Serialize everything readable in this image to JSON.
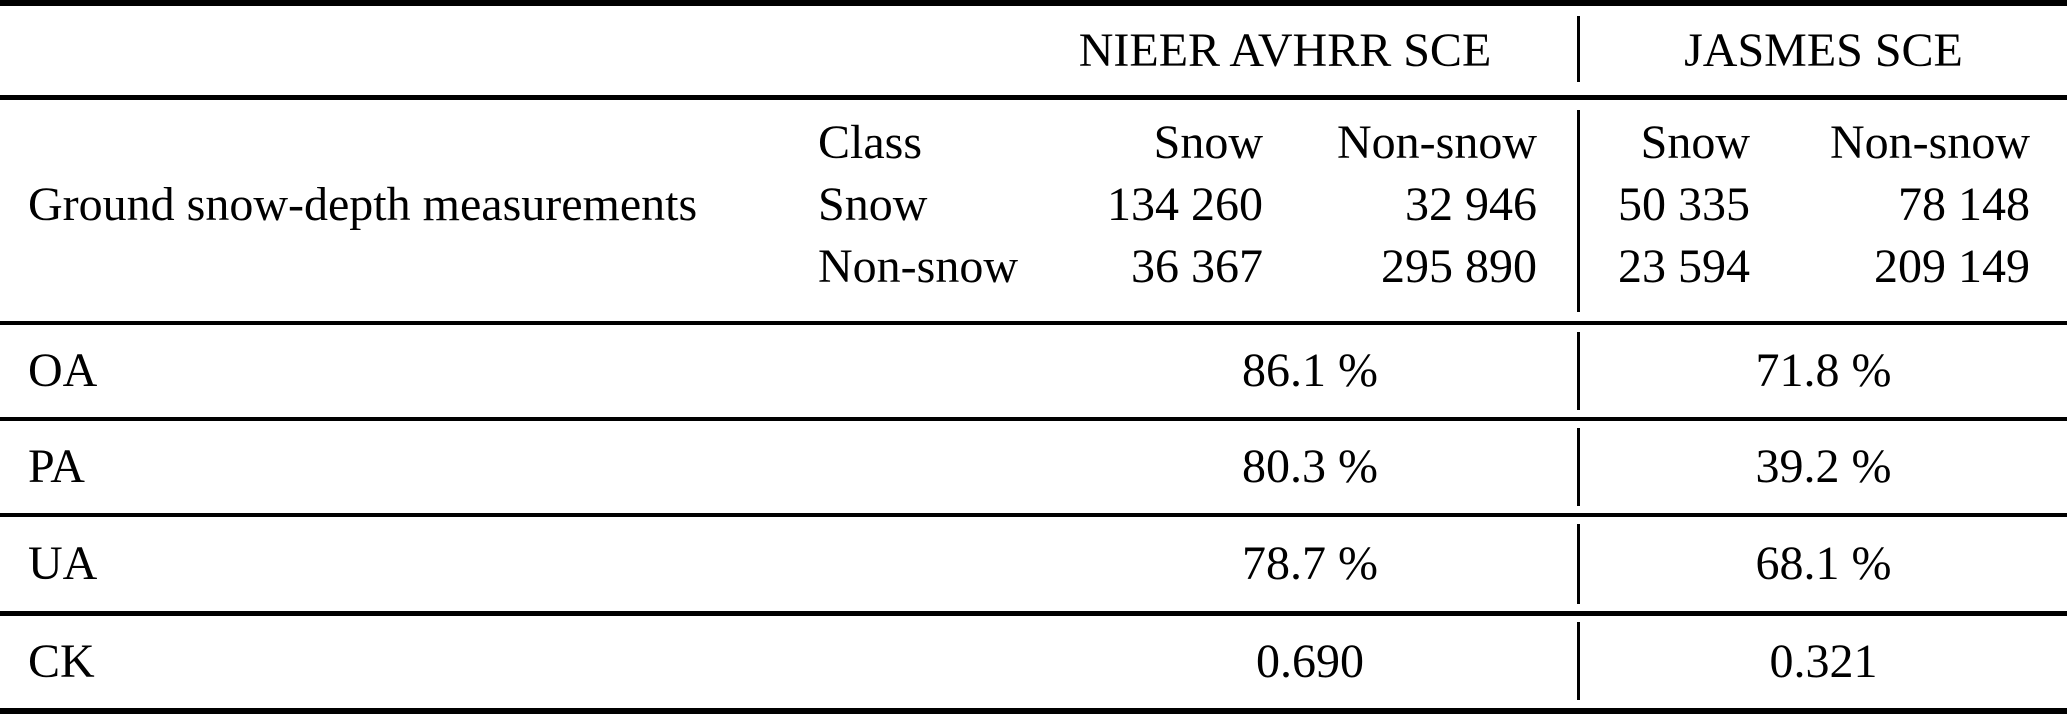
{
  "table": {
    "group_headers": {
      "nieer": "NIEER AVHRR SCE",
      "jasmes": "JASMES SCE"
    },
    "matrix": {
      "row_header": "Ground snow-depth measurements",
      "class_col": [
        "Class",
        "Snow",
        "Non-snow"
      ],
      "nieer_snow_col": [
        "Snow",
        "134 260",
        "36 367"
      ],
      "nieer_nonsnow_col": [
        "Non-snow",
        "32 946",
        "295 890"
      ],
      "jasmes_snow_col": [
        "Snow",
        "50 335",
        "23 594"
      ],
      "jasmes_nonsnow_col": [
        "Non-snow",
        "78 148",
        "209 149"
      ]
    },
    "metrics": [
      {
        "label": "OA",
        "nieer": "86.1 %",
        "jasmes": "71.8 %"
      },
      {
        "label": "PA",
        "nieer": "80.3 %",
        "jasmes": "39.2 %"
      },
      {
        "label": "UA",
        "nieer": "78.7 %",
        "jasmes": "68.1 %"
      },
      {
        "label": "CK",
        "nieer": "0.690",
        "jasmes": "0.321"
      }
    ],
    "colors": {
      "text": "#000000",
      "rule": "#000000",
      "background": "#ffffff"
    }
  }
}
